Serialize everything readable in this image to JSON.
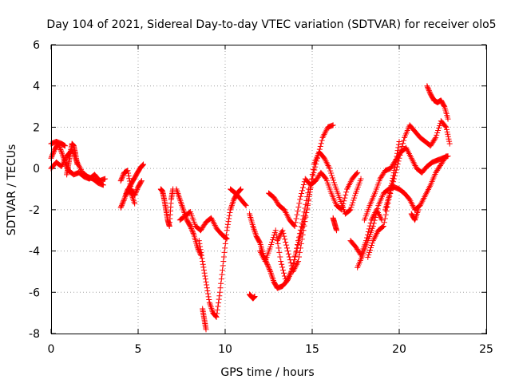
{
  "chart_data": {
    "type": "scatter",
    "title": "Day 104 of 2021, Sidereal Day-to-day VTEC variation (SDTVAR) for receiver olo5",
    "xlabel": "GPS time / hours",
    "ylabel": "SDTVAR / TECUs",
    "xlim": [
      0,
      25
    ],
    "ylim": [
      -8,
      6
    ],
    "xticks": [
      0,
      5,
      10,
      15,
      20,
      25
    ],
    "yticks": [
      -8,
      -6,
      -4,
      -2,
      0,
      2,
      4,
      6
    ],
    "grid": true,
    "marker": "+",
    "color": "#ff0000",
    "series": [
      {
        "name": "SDTVAR",
        "segments": [
          {
            "x": [
              0.0,
              0.3,
              0.6,
              0.8
            ],
            "y": [
              1.2,
              1.3,
              1.2,
              1.1
            ]
          },
          {
            "x": [
              0.0,
              0.2,
              0.4,
              0.6,
              0.8,
              1.0,
              1.3,
              1.6,
              1.9,
              2.2,
              2.5,
              2.8,
              3.1
            ],
            "y": [
              0.5,
              0.9,
              1.2,
              0.8,
              0.3,
              -0.1,
              -0.3,
              -0.2,
              -0.4,
              -0.5,
              -0.3,
              -0.6,
              -0.5
            ]
          },
          {
            "x": [
              0.0,
              0.3,
              0.6,
              0.9,
              1.2,
              1.5,
              1.8,
              2.1,
              2.4,
              2.7,
              3.0
            ],
            "y": [
              0.0,
              0.3,
              0.1,
              0.6,
              0.9,
              0.3,
              -0.2,
              -0.4,
              -0.5,
              -0.7,
              -0.8
            ]
          },
          {
            "x": [
              0.9,
              1.0,
              1.1,
              1.2,
              1.3,
              1.4,
              1.5
            ],
            "y": [
              -0.3,
              0.2,
              0.7,
              1.2,
              1.1,
              0.7,
              0.2
            ]
          },
          {
            "x": [
              4.0,
              4.2,
              4.4,
              4.6,
              4.8
            ],
            "y": [
              -1.9,
              -1.5,
              -1.0,
              -1.2,
              -1.7
            ]
          },
          {
            "x": [
              4.0,
              4.2,
              4.4,
              4.6,
              4.8,
              5.0,
              5.2
            ],
            "y": [
              -0.6,
              -0.2,
              -0.1,
              -1.0,
              -1.3,
              -0.9,
              -0.6
            ]
          },
          {
            "x": [
              4.3,
              4.5,
              4.7,
              4.9,
              5.1,
              5.3
            ],
            "y": [
              -1.3,
              -0.9,
              -0.6,
              -0.3,
              0.0,
              0.2
            ]
          },
          {
            "x": [
              6.3,
              6.4,
              6.5,
              6.6,
              6.7,
              6.8,
              6.9,
              7.0
            ],
            "y": [
              -1.0,
              -1.1,
              -1.5,
              -2.0,
              -2.5,
              -2.8,
              -1.5,
              -1.0
            ]
          },
          {
            "x": [
              7.2,
              7.4,
              7.6,
              7.8,
              8.0,
              8.2,
              8.4,
              8.6
            ],
            "y": [
              -1.0,
              -1.5,
              -2.0,
              -2.5,
              -2.8,
              -3.2,
              -3.8,
              -4.2
            ]
          },
          {
            "x": [
              7.4,
              7.7,
              8.0,
              8.3,
              8.6,
              8.9,
              9.2,
              9.5,
              9.8,
              10.1
            ],
            "y": [
              -2.5,
              -2.3,
              -2.1,
              -2.8,
              -3.0,
              -2.6,
              -2.4,
              -2.9,
              -3.2,
              -3.4
            ]
          },
          {
            "x": [
              8.5,
              8.7,
              8.9,
              9.1,
              9.3,
              9.5,
              9.7,
              9.9,
              10.1,
              10.3,
              10.5,
              10.7,
              10.9
            ],
            "y": [
              -3.5,
              -4.5,
              -5.5,
              -6.5,
              -7.0,
              -7.2,
              -6.0,
              -4.5,
              -3.0,
              -2.0,
              -1.5,
              -1.2,
              -1.0
            ]
          },
          {
            "x": [
              10.3,
              10.6,
              10.9,
              11.2
            ],
            "y": [
              -1.0,
              -1.2,
              -1.5,
              -1.8
            ]
          },
          {
            "x": [
              8.7,
              8.8,
              8.9
            ],
            "y": [
              -6.8,
              -7.3,
              -7.8
            ]
          },
          {
            "x": [
              11.4,
              11.5,
              11.6,
              11.7
            ],
            "y": [
              -6.1,
              -6.2,
              -6.3,
              -6.2
            ]
          },
          {
            "x": [
              11.4,
              11.6,
              11.8,
              12.0,
              12.2,
              12.4,
              12.6,
              12.8,
              13.0,
              13.3,
              13.6,
              13.9,
              14.2,
              14.5,
              14.8
            ],
            "y": [
              -2.2,
              -2.8,
              -3.3,
              -3.6,
              -4.2,
              -4.6,
              -5.0,
              -5.5,
              -5.8,
              -5.7,
              -5.4,
              -4.8,
              -3.5,
              -2.3,
              -1.0
            ]
          },
          {
            "x": [
              12.0,
              12.3,
              12.6,
              12.9,
              13.2,
              13.5,
              13.8,
              14.1,
              14.4,
              14.7,
              15.0,
              15.3,
              15.6,
              15.9,
              16.2
            ],
            "y": [
              -4.0,
              -4.5,
              -3.8,
              -3.0,
              -4.5,
              -5.5,
              -5.0,
              -4.0,
              -3.0,
              -2.0,
              -0.5,
              0.5,
              1.5,
              2.0,
              2.1
            ]
          },
          {
            "x": [
              12.5,
              12.8,
              13.1,
              13.4,
              13.7,
              14.0,
              14.3,
              14.6,
              14.9,
              15.2,
              15.5,
              15.8,
              16.1,
              16.4,
              16.7,
              17.0,
              17.3,
              17.6
            ],
            "y": [
              -1.2,
              -1.4,
              -1.8,
              -2.0,
              -2.5,
              -2.8,
              -1.5,
              -0.5,
              -0.8,
              -0.6,
              -0.2,
              -0.5,
              -1.2,
              -1.8,
              -2.0,
              -1.0,
              -0.5,
              -0.2
            ]
          },
          {
            "x": [
              13.0,
              13.3,
              13.6,
              13.9,
              14.2,
              14.5,
              14.8,
              15.1,
              15.4,
              15.7,
              16.0,
              16.3,
              16.6,
              16.9,
              17.2,
              17.5,
              17.8
            ],
            "y": [
              -3.5,
              -3.0,
              -4.0,
              -5.0,
              -4.5,
              -3.0,
              -1.5,
              0.2,
              0.8,
              0.5,
              0.0,
              -0.8,
              -1.5,
              -2.2,
              -2.0,
              -1.2,
              -0.5
            ]
          },
          {
            "x": [
              16.2,
              16.3,
              16.4
            ],
            "y": [
              -2.4,
              -2.7,
              -3.0
            ]
          },
          {
            "x": [
              17.2,
              17.5,
              17.8,
              18.1,
              18.4,
              18.7,
              19.0
            ],
            "y": [
              -3.5,
              -3.8,
              -4.2,
              -3.5,
              -2.5,
              -2.0,
              -2.5
            ]
          },
          {
            "x": [
              17.6,
              17.9,
              18.2,
              18.5,
              18.8,
              19.1,
              19.4,
              19.7,
              20.0,
              20.3,
              20.6,
              20.9,
              21.2,
              21.5,
              21.8,
              22.1,
              22.4,
              22.7
            ],
            "y": [
              -4.8,
              -4.2,
              -3.5,
              -2.8,
              -1.8,
              -1.2,
              -1.0,
              -0.9,
              -1.0,
              -1.2,
              -1.5,
              -2.0,
              -1.8,
              -1.3,
              -0.8,
              -0.2,
              0.2,
              0.6
            ]
          },
          {
            "x": [
              18.0,
              18.3,
              18.6,
              18.9,
              19.2,
              19.5,
              19.8,
              20.1,
              20.4,
              20.7,
              21.0,
              21.3,
              21.6,
              21.9,
              22.2,
              22.5,
              22.8
            ],
            "y": [
              -2.5,
              -1.8,
              -1.2,
              -0.5,
              -0.1,
              0.0,
              0.4,
              0.8,
              1.0,
              0.5,
              0.0,
              -0.2,
              0.1,
              0.3,
              0.4,
              0.5,
              0.6
            ]
          },
          {
            "x": [
              18.2,
              18.5,
              18.8,
              19.1,
              19.4,
              19.7,
              20.0,
              20.3,
              20.6,
              20.9,
              21.2,
              21.5,
              21.8,
              22.1,
              22.4,
              22.7,
              22.9
            ],
            "y": [
              -4.3,
              -3.5,
              -3.0,
              -2.8,
              -1.5,
              -0.5,
              0.5,
              1.5,
              2.1,
              1.8,
              1.5,
              1.3,
              1.1,
              1.5,
              2.3,
              2.0,
              1.2
            ]
          },
          {
            "x": [
              19.2,
              19.4,
              19.6,
              19.8,
              20.0
            ],
            "y": [
              -2.0,
              -1.4,
              -0.6,
              0.3,
              1.3
            ]
          },
          {
            "x": [
              21.6,
              21.8,
              22.0,
              22.2,
              22.4,
              22.6,
              22.8
            ],
            "y": [
              4.0,
              3.6,
              3.3,
              3.2,
              3.3,
              3.0,
              2.4
            ]
          },
          {
            "x": [
              20.7,
              20.9,
              21.1
            ],
            "y": [
              -2.2,
              -2.5,
              -2.0
            ]
          }
        ]
      }
    ]
  }
}
